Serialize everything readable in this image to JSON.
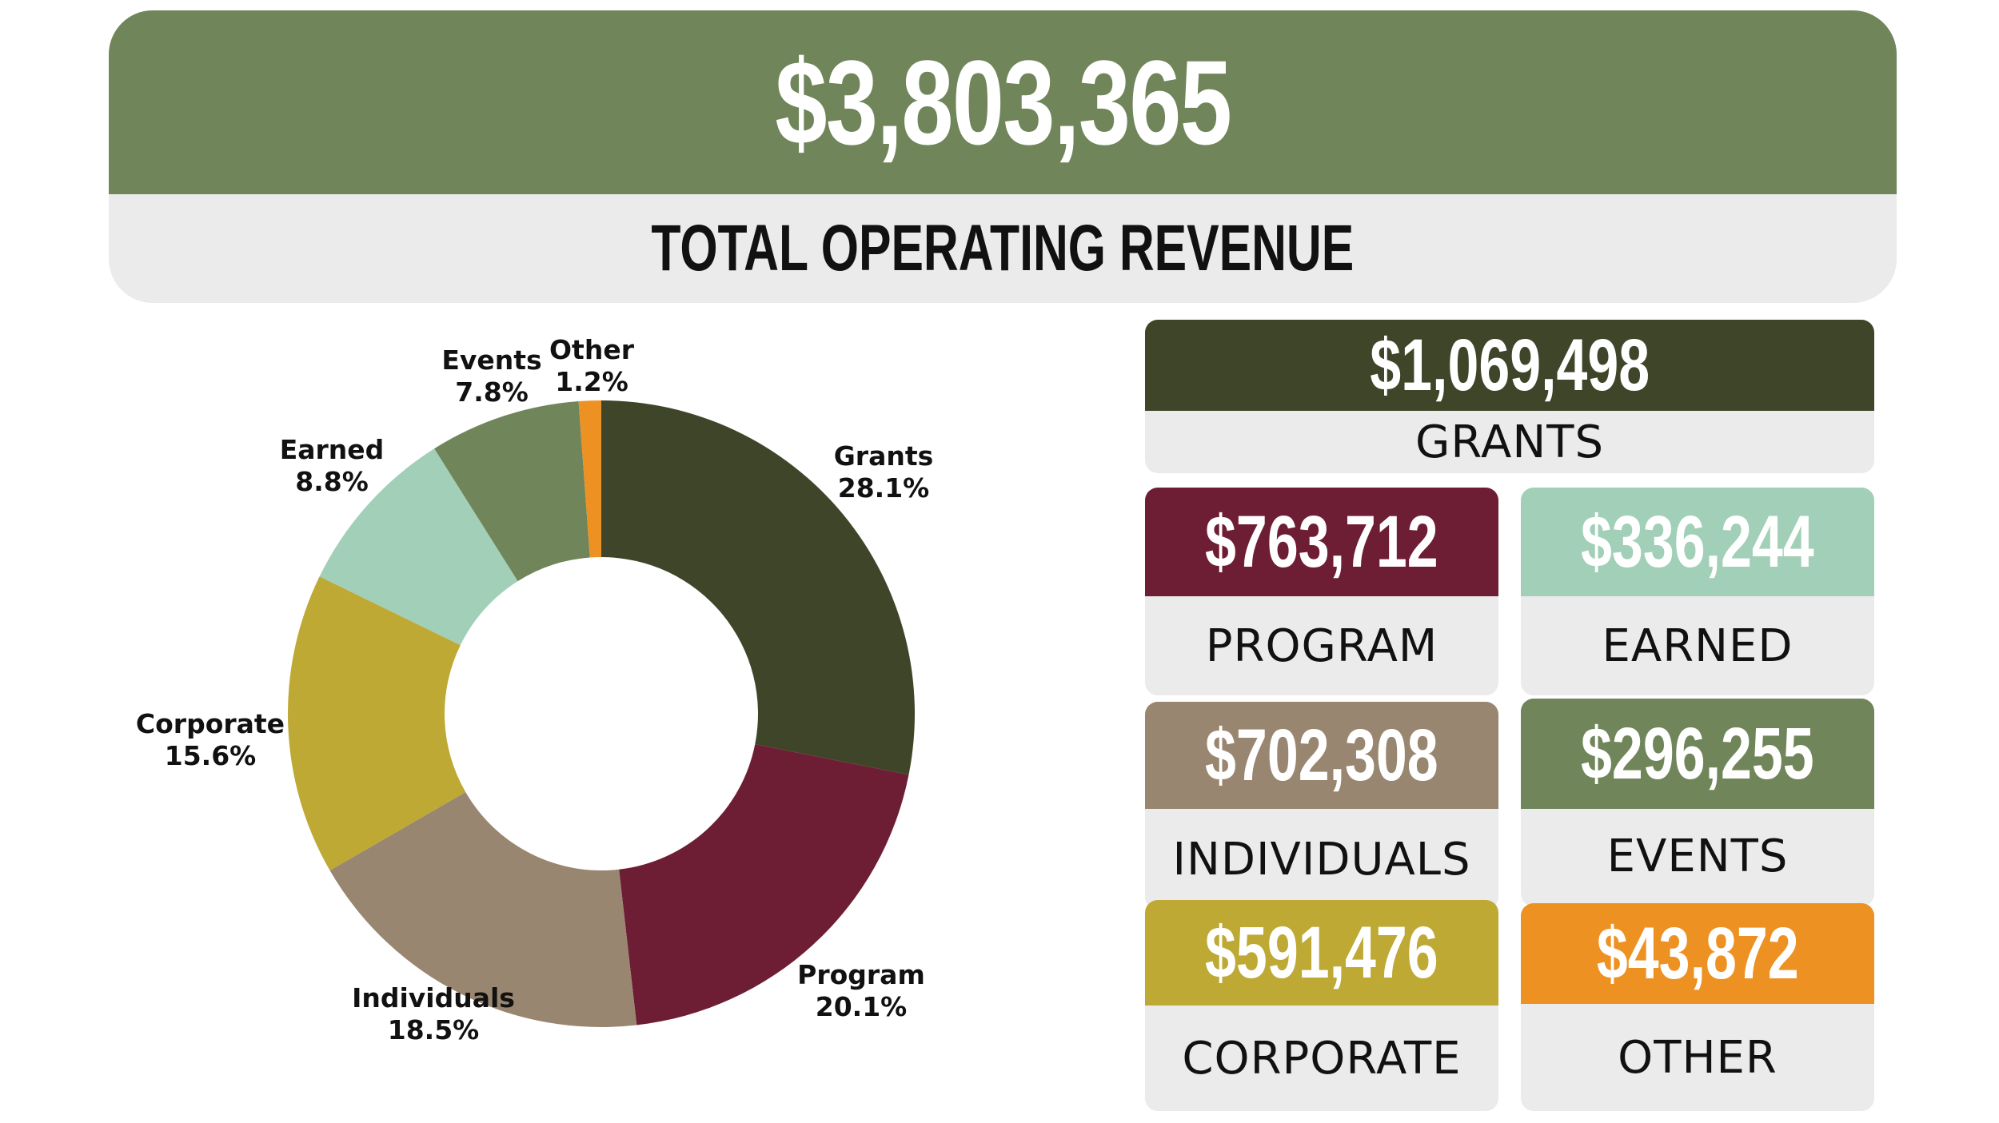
{
  "header": {
    "total": "$3,803,365",
    "label": "TOTAL OPERATING REVENUE"
  },
  "chart_data": {
    "type": "pie",
    "variant": "donut",
    "title": "",
    "slices": [
      {
        "name": "Grants",
        "value": 1069498,
        "percent_label": "28.1%",
        "color": "#3f4529"
      },
      {
        "name": "Program",
        "value": 763712,
        "percent_label": "20.1%",
        "color": "#6e1e34"
      },
      {
        "name": "Individuals",
        "value": 702308,
        "percent_label": "18.5%",
        "color": "#998670"
      },
      {
        "name": "Corporate",
        "value": 591476,
        "percent_label": "15.6%",
        "color": "#bda934"
      },
      {
        "name": "Earned",
        "value": 336244,
        "percent_label": "8.8%",
        "color": "#a2cfb7"
      },
      {
        "name": "Events",
        "value": 296255,
        "percent_label": "7.8%",
        "color": "#70865a"
      },
      {
        "name": "Other",
        "value": 43872,
        "percent_label": "1.2%",
        "color": "#ee9123"
      }
    ]
  },
  "cards": {
    "grants": {
      "value": "$1,069,498",
      "label": "GRANTS",
      "color": "#3f4529"
    },
    "program": {
      "value": "$763,712",
      "label": "PROGRAM",
      "color": "#6e1e34"
    },
    "earned": {
      "value": "$336,244",
      "label": "EARNED",
      "color": "#a2cfb7"
    },
    "individuals": {
      "value": "$702,308",
      "label": "INDIVIDUALS",
      "color": "#998670"
    },
    "events": {
      "value": "$296,255",
      "label": "EVENTS",
      "color": "#70865a"
    },
    "corporate": {
      "value": "$591,476",
      "label": "CORPORATE",
      "color": "#bda934"
    },
    "other": {
      "value": "$43,872",
      "label": "OTHER",
      "color": "#ee9123"
    }
  }
}
